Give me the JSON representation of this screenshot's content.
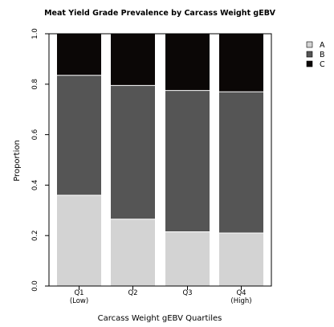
{
  "chart_data": {
    "type": "bar",
    "stacked": true,
    "title": "Meat Yield Grade Prevalence by Carcass Weight gEBV",
    "xlabel": "Carcass Weight gEBV Quartiles",
    "ylabel": "Proportion",
    "ylim": [
      0,
      1
    ],
    "yticks": [
      "0.0",
      "0.2",
      "0.4",
      "0.6",
      "0.8",
      "1.0"
    ],
    "categories": [
      {
        "label": "Q1",
        "sublabel": "(Low)"
      },
      {
        "label": "Q2",
        "sublabel": ""
      },
      {
        "label": "Q3",
        "sublabel": ""
      },
      {
        "label": "Q4",
        "sublabel": "(High)"
      }
    ],
    "series": [
      {
        "name": "A",
        "color": "#d3d3d3",
        "values": [
          0.36,
          0.265,
          0.215,
          0.21
        ]
      },
      {
        "name": "B",
        "color": "#555555",
        "values": [
          0.475,
          0.53,
          0.56,
          0.56
        ]
      },
      {
        "name": "C",
        "color": "#0b0706",
        "values": [
          0.165,
          0.205,
          0.225,
          0.23
        ]
      }
    ],
    "legend_position": "top-right",
    "grid": false
  }
}
